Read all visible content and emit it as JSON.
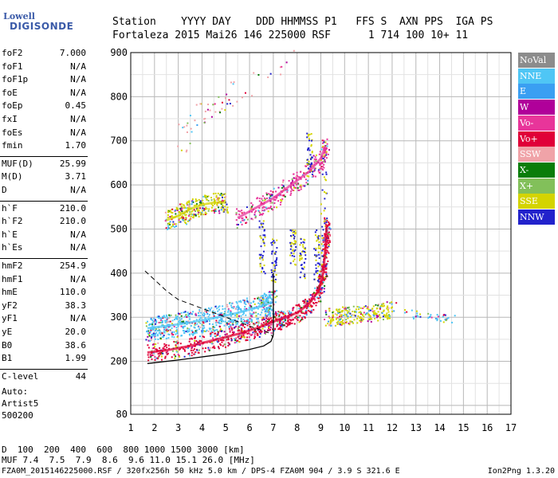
{
  "logo": {
    "top": "Lowell",
    "bottom": "DIGISONDE"
  },
  "header": {
    "labels": "Station    YYYY DAY    DDD HHMMSS P1   FFS S  AXN PPS  IGA PS",
    "values": "Fortaleza 2015 Mai26 146 225000 RSF      1 714 100 10+ 11"
  },
  "params": [
    {
      "name": "foF2",
      "value": "7.000"
    },
    {
      "name": "foF1",
      "value": "N/A"
    },
    {
      "name": "foF1p",
      "value": "N/A"
    },
    {
      "name": "foE",
      "value": "N/A"
    },
    {
      "name": "foEp",
      "value": "0.45"
    },
    {
      "name": "fxI",
      "value": "N/A"
    },
    {
      "name": "foEs",
      "value": "N/A"
    },
    {
      "name": "fmin",
      "value": "1.70"
    },
    {
      "name": "MUF(D)",
      "value": "25.99"
    },
    {
      "name": "M(D)",
      "value": "3.71"
    },
    {
      "name": "D",
      "value": "N/A"
    },
    {
      "name": "h`F",
      "value": "210.0"
    },
    {
      "name": "h`F2",
      "value": "210.0"
    },
    {
      "name": "h`E",
      "value": "N/A"
    },
    {
      "name": "h`Es",
      "value": "N/A"
    },
    {
      "name": "hmF2",
      "value": "254.9"
    },
    {
      "name": "hmF1",
      "value": "N/A"
    },
    {
      "name": "hmE",
      "value": "110.0"
    },
    {
      "name": "yF2",
      "value": "38.3"
    },
    {
      "name": "yF1",
      "value": "N/A"
    },
    {
      "name": "yE",
      "value": "20.0"
    },
    {
      "name": "B0",
      "value": "38.6"
    },
    {
      "name": "B1",
      "value": "1.99"
    },
    {
      "name": "C-level",
      "value": "44"
    }
  ],
  "auto": {
    "line1": "Auto:",
    "line2": "Artist5",
    "line3": "500200"
  },
  "legend": [
    {
      "label": "NoVal",
      "color": "#8c8c8c"
    },
    {
      "label": "NNE",
      "color": "#4fc6f5"
    },
    {
      "label": "E",
      "color": "#3a9ff2"
    },
    {
      "label": "W",
      "color": "#b0009a"
    },
    {
      "label": "Vo-",
      "color": "#e8359a"
    },
    {
      "label": "Vo+",
      "color": "#e00038"
    },
    {
      "label": "SSW",
      "color": "#f0a3a8"
    },
    {
      "label": "X-",
      "color": "#0a7d0a"
    },
    {
      "label": "X+",
      "color": "#82c05a"
    },
    {
      "label": "SSE",
      "color": "#d4d400"
    },
    {
      "label": "NNW",
      "color": "#2222cc"
    }
  ],
  "muf": {
    "d_label": "D",
    "d_values": "  100  200  400  600  800 1000 1500 3000 [km]",
    "muf_label": "MUF",
    "muf_values": " 7.4  7.5  7.9  8.6  9.6 11.0 15.1 26.0 [MHz]"
  },
  "footer": {
    "left": "FZA0M_2015146225000.RSF / 320fx256h 50 kHz 5.0 km / DPS-4 FZA0M 904 / 3.9 S 321.6 E",
    "right": "Ion2Png 1.3.20"
  },
  "chart_data": {
    "type": "scatter",
    "xlim": [
      1,
      17
    ],
    "ylim": [
      80,
      900
    ],
    "xticks": [
      1,
      2,
      3,
      4,
      5,
      6,
      7,
      8,
      9,
      10,
      11,
      12,
      13,
      14,
      15,
      16,
      17
    ],
    "yticks": [
      80,
      200,
      300,
      400,
      500,
      600,
      700,
      800,
      900
    ],
    "grid": true,
    "traces": [
      {
        "name": "o-trace",
        "color": "#e00038",
        "points": [
          [
            1.7,
            220
          ],
          [
            2.5,
            225
          ],
          [
            3.5,
            235
          ],
          [
            4.5,
            248
          ],
          [
            5.5,
            262
          ],
          [
            6.3,
            275
          ],
          [
            7.0,
            290
          ],
          [
            7.5,
            300
          ],
          [
            8.0,
            310
          ],
          [
            8.5,
            330
          ],
          [
            8.9,
            360
          ],
          [
            9.1,
            400
          ],
          [
            9.2,
            460
          ],
          [
            9.25,
            510
          ]
        ]
      },
      {
        "name": "x-trace",
        "color": "#4fc6f5",
        "points": [
          [
            1.7,
            275
          ],
          [
            2.5,
            280
          ],
          [
            3.5,
            288
          ],
          [
            4.5,
            298
          ],
          [
            5.5,
            310
          ],
          [
            6.5,
            325
          ],
          [
            7.0,
            335
          ]
        ]
      },
      {
        "name": "upper-trace",
        "color": "#e8359a",
        "points": [
          [
            5.5,
            525
          ],
          [
            6.0,
            540
          ],
          [
            6.5,
            555
          ],
          [
            7.0,
            570
          ],
          [
            7.5,
            590
          ],
          [
            8.0,
            610
          ],
          [
            8.5,
            630
          ],
          [
            9.0,
            660
          ],
          [
            9.2,
            690
          ]
        ]
      },
      {
        "name": "upper-yellow",
        "color": "#d4d400",
        "points": [
          [
            2.5,
            520
          ],
          [
            3.0,
            530
          ],
          [
            3.5,
            545
          ],
          [
            4.0,
            555
          ],
          [
            4.5,
            560
          ],
          [
            5.0,
            560
          ]
        ]
      }
    ],
    "profile_solid": [
      [
        1.7,
        195
      ],
      [
        3.0,
        203
      ],
      [
        4.0,
        210
      ],
      [
        5.0,
        217
      ],
      [
        6.0,
        227
      ],
      [
        6.6,
        235
      ],
      [
        6.9,
        245
      ],
      [
        7.0,
        260
      ],
      [
        7.0,
        300
      ],
      [
        7.0,
        400
      ]
    ],
    "profile_dashed": [
      [
        1.6,
        405
      ],
      [
        2.0,
        385
      ],
      [
        2.5,
        360
      ],
      [
        3.0,
        340
      ],
      [
        4.0,
        320
      ],
      [
        5.0,
        300
      ],
      [
        6.0,
        280
      ],
      [
        6.8,
        265
      ],
      [
        7.0,
        255
      ]
    ]
  }
}
